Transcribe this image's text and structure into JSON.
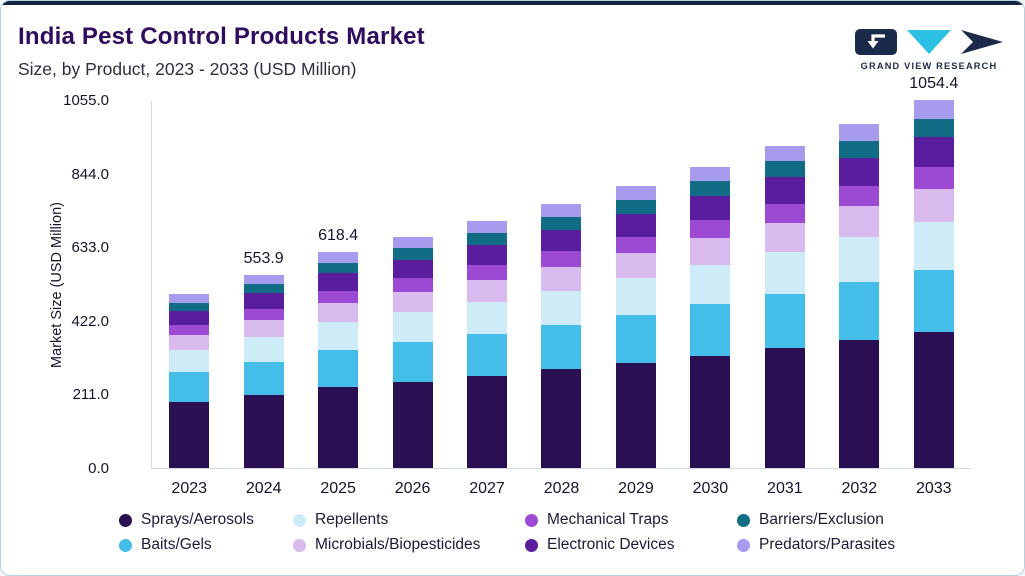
{
  "page": {
    "background": "#f3f6f9",
    "card_border": "#b9cfdd",
    "top_stripe": "#14263f"
  },
  "header": {
    "title": "India Pest Control Products Market",
    "subtitle": "Size, by Product, 2023 - 2033 (USD Million)"
  },
  "logo": {
    "text": "GRAND VIEW RESEARCH",
    "navy": "#1b2a4a",
    "cyan": "#2bc0e4"
  },
  "chart_data": {
    "type": "bar",
    "stacked": true,
    "title": "India Pest Control Products Market Size, by Product, 2023 - 2033 (USD Million)",
    "xlabel": "",
    "ylabel": "Market Size (USD Million)",
    "ylim": [
      0,
      1055
    ],
    "ytick_values": [
      0,
      211,
      422,
      633,
      844,
      1055
    ],
    "ytick_labels": [
      "0.0",
      "211.0",
      "422.0",
      "633.0",
      "844.0",
      "1055.0"
    ],
    "categories": [
      "2023",
      "2024",
      "2025",
      "2026",
      "2027",
      "2028",
      "2029",
      "2030",
      "2031",
      "2032",
      "2033"
    ],
    "bar_total_labels": [
      "",
      "553.9",
      "618.4",
      "",
      "",
      "",
      "",
      "",
      "",
      "",
      "1054.4"
    ],
    "grid": false,
    "legend_position": "bottom",
    "series": [
      {
        "name": "Sprays/Aerosols",
        "color": "#2a1052",
        "values": [
          190,
          210,
          233,
          248,
          265,
          283,
          302,
          322,
          343,
          366,
          390
        ]
      },
      {
        "name": "Baits/Gels",
        "color": "#44bde8",
        "values": [
          84,
          94,
          105,
          112,
          120,
          128,
          137,
          147,
          157,
          168,
          179
        ]
      },
      {
        "name": "Repellents",
        "color": "#cdecf8",
        "values": [
          65,
          72,
          80,
          86,
          92,
          98,
          105,
          112,
          120,
          128,
          137
        ]
      },
      {
        "name": "Microbials/Biopesticides",
        "color": "#d9baee",
        "values": [
          42,
          48,
          54,
          58,
          62,
          67,
          72,
          77,
          83,
          89,
          95
        ]
      },
      {
        "name": "Mechanical Traps",
        "color": "#9c4ad4",
        "values": [
          30,
          33,
          37,
          40,
          42,
          45,
          48,
          52,
          55,
          59,
          63
        ]
      },
      {
        "name": "Electronic Devices",
        "color": "#5a1d9e",
        "values": [
          39,
          44,
          49,
          53,
          57,
          61,
          65,
          70,
          75,
          80,
          84
        ]
      },
      {
        "name": "Barriers/Exclusion",
        "color": "#116c85",
        "values": [
          24,
          27,
          31,
          33,
          35,
          38,
          40,
          43,
          46,
          49,
          53
        ]
      },
      {
        "name": "Predators/Parasites",
        "color": "#a79bee",
        "values": [
          23.5,
          25.9,
          29.4,
          31,
          34,
          36,
          39,
          41,
          44,
          48,
          53.4
        ]
      }
    ],
    "annotated_totals": {
      "2024": 553.9,
      "2025": 618.4,
      "2033": 1054.4
    }
  },
  "legend": {
    "items": [
      {
        "label": "Sprays/Aerosols",
        "color": "#2a1052"
      },
      {
        "label": "Repellents",
        "color": "#cdecf8"
      },
      {
        "label": "Mechanical Traps",
        "color": "#9c4ad4"
      },
      {
        "label": "Barriers/Exclusion",
        "color": "#116c85"
      },
      {
        "label": "Baits/Gels",
        "color": "#44bde8"
      },
      {
        "label": "Microbials/Biopesticides",
        "color": "#d9baee"
      },
      {
        "label": "Electronic Devices",
        "color": "#5a1d9e"
      },
      {
        "label": "Predators/Parasites",
        "color": "#a79bee"
      }
    ]
  }
}
